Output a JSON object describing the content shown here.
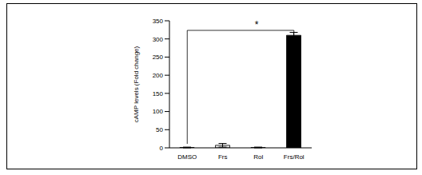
{
  "chart_data": {
    "type": "bar",
    "categories": [
      "DMSO",
      "Frs",
      "Rol",
      "Frs/Rol"
    ],
    "values": [
      1,
      7,
      1,
      310
    ],
    "errors": [
      1,
      5,
      1,
      8
    ],
    "colors": [
      "#333333",
      "#e8e8e8",
      "#ffffff",
      "#000000"
    ],
    "ylim": [
      0,
      350
    ],
    "yticks": [
      0,
      50,
      100,
      150,
      200,
      250,
      300,
      350
    ],
    "y_label": "cAMP levels (Fold change)",
    "annotation": "*"
  }
}
